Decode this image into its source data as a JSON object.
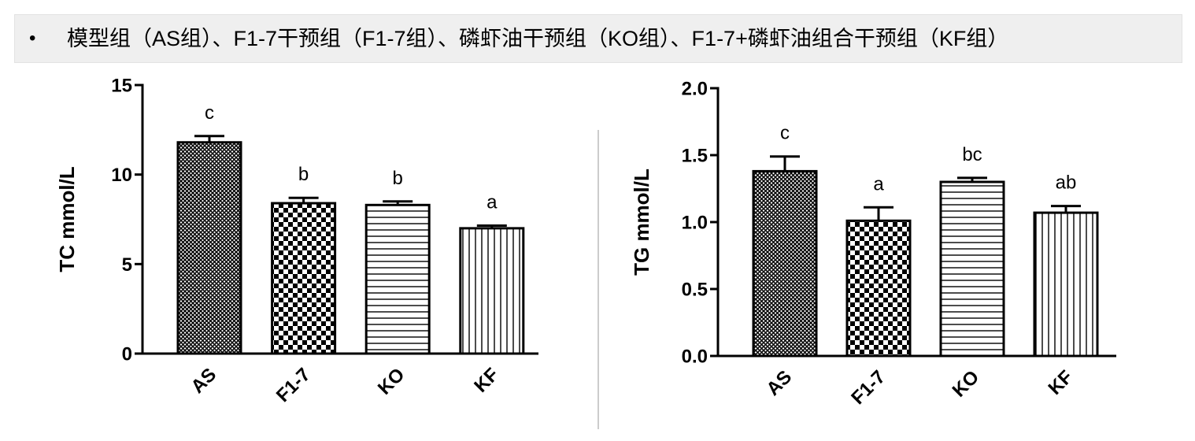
{
  "header": {
    "bullet": "•",
    "text": "模型组（AS组）、F1-7干预组（F1-7组）、磷虾油干预组（KO组）、F1-7+磷虾油组合干预组（KF组）"
  },
  "colors": {
    "banner_background": "#efefef",
    "ink": "#000000",
    "divider": "#9a9a9a"
  },
  "chart_data": [
    {
      "type": "bar",
      "categories": [
        "AS",
        "F1-7",
        "KO",
        "KF"
      ],
      "values": [
        11.8,
        8.4,
        8.3,
        7.0
      ],
      "error": [
        0.35,
        0.3,
        0.2,
        0.15
      ],
      "significance": [
        "c",
        "b",
        "b",
        "a"
      ],
      "fill_patterns": [
        "crosshatch",
        "checkerboard",
        "horizontal-lines",
        "vertical-lines"
      ],
      "ylabel": "TC mmol/L",
      "ylim": [
        0,
        15
      ],
      "yticks": [
        0,
        5,
        10,
        15
      ],
      "ytick_labels": [
        "0",
        "5",
        "10",
        "15"
      ],
      "grid": false
    },
    {
      "type": "bar",
      "categories": [
        "AS",
        "F1-7",
        "KO",
        "KF"
      ],
      "values": [
        1.38,
        1.01,
        1.3,
        1.07
      ],
      "error": [
        0.11,
        0.1,
        0.03,
        0.05
      ],
      "significance": [
        "c",
        "a",
        "bc",
        "ab"
      ],
      "fill_patterns": [
        "crosshatch",
        "checkerboard",
        "horizontal-lines",
        "vertical-lines"
      ],
      "ylabel": "TG mmol/L",
      "ylim": [
        0,
        2.0
      ],
      "yticks": [
        0,
        0.5,
        1.0,
        1.5,
        2.0
      ],
      "ytick_labels": [
        "0.0",
        "0.5",
        "1.0",
        "1.5",
        "2.0"
      ],
      "grid": false
    }
  ]
}
